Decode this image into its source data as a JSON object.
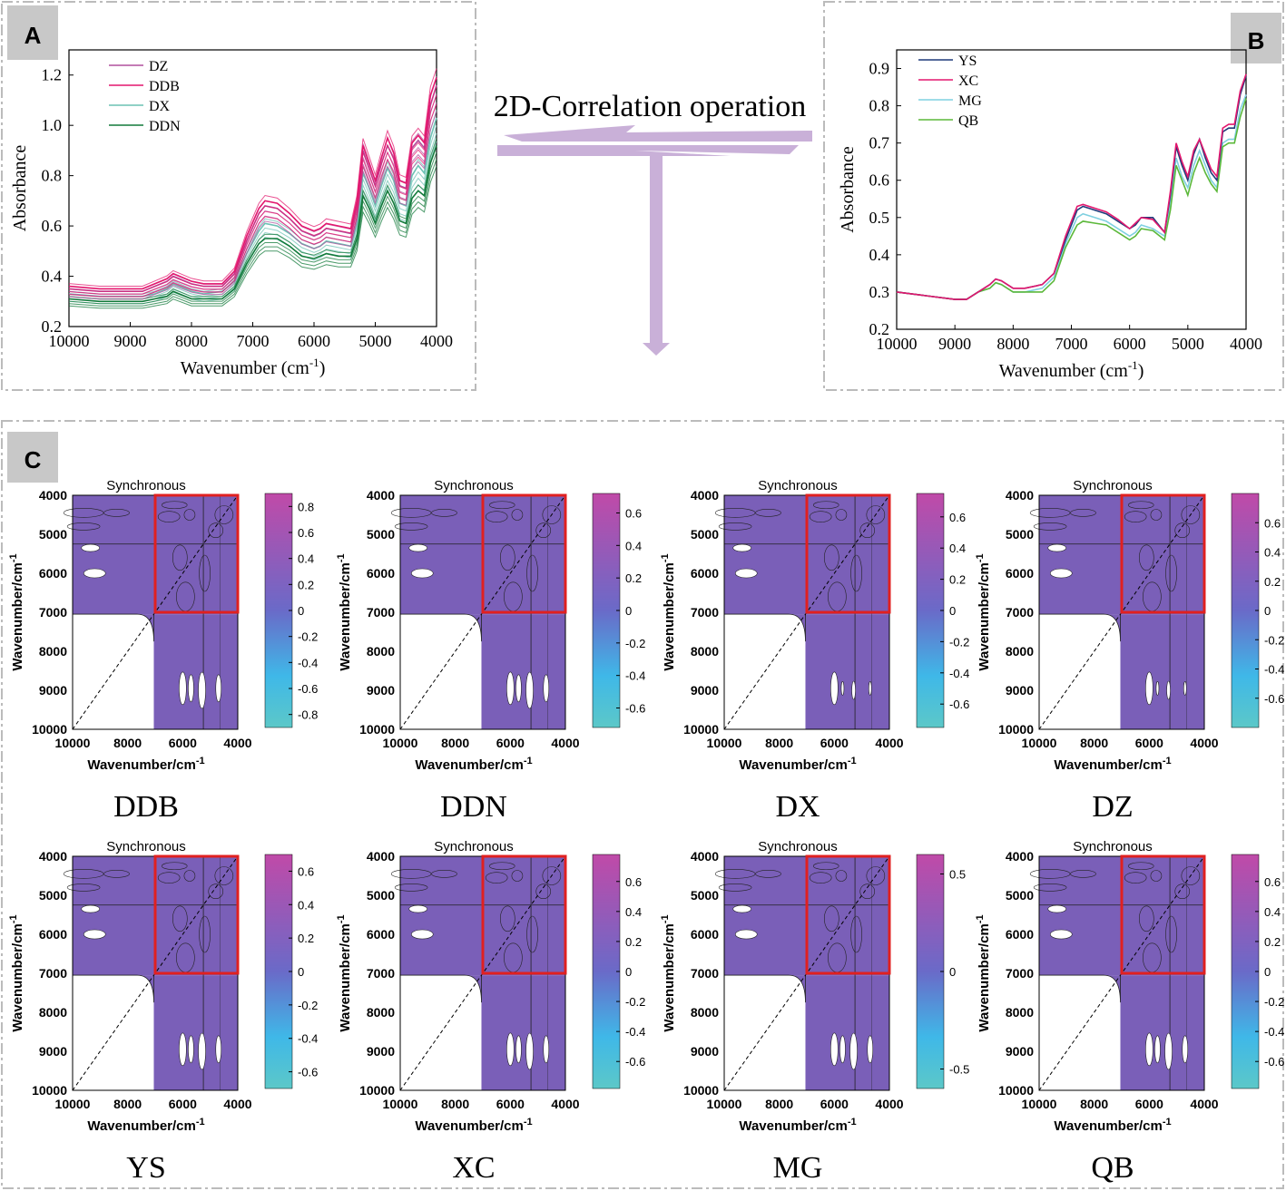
{
  "figure": {
    "panels": {
      "a": "A",
      "b": "B",
      "c": "C"
    },
    "operation_label": "2D-Correlation operation"
  },
  "colors": {
    "dz": "#b0509e",
    "ddb": "#e3176e",
    "dx": "#6cc2b4",
    "ddn": "#127a3a",
    "ys": "#1f3a7a",
    "xc": "#e3176e",
    "mg": "#7fd0e0",
    "qb": "#5cb83a",
    "map_fill": "#7a5fb8",
    "highlight": "#e02020",
    "arrow": "#c9b0d8"
  },
  "chart_data": [
    {
      "id": "A",
      "type": "line",
      "title": "",
      "xlabel": "Wavenumber (cm",
      "xlabel_sup": "-1",
      "xlabel_end": ")",
      "ylabel": "Absorbance",
      "xlim": [
        10000,
        4000
      ],
      "ylim": [
        0.2,
        1.3
      ],
      "xticks": [
        10000,
        9000,
        8000,
        7000,
        6000,
        5000,
        4000
      ],
      "xtick_labels": [
        "10000",
        "9000",
        "8000",
        "7000",
        "6000",
        "5000",
        "4000"
      ],
      "yticks": [
        0.2,
        0.4,
        0.6,
        0.8,
        1.0,
        1.2
      ],
      "ytick_labels": [
        "0.2",
        "0.4",
        "0.6",
        "0.8",
        "1.0",
        "1.2"
      ],
      "legend": [
        "DZ",
        "DDB",
        "DX",
        "DDN"
      ],
      "x": [
        10000,
        9500,
        9000,
        8800,
        8600,
        8400,
        8300,
        8200,
        8000,
        7800,
        7500,
        7300,
        7100,
        6900,
        6800,
        6600,
        6400,
        6200,
        6000,
        5900,
        5800,
        5600,
        5400,
        5300,
        5200,
        5100,
        5000,
        4900,
        4800,
        4700,
        4600,
        4500,
        4400,
        4300,
        4200,
        4100,
        4000
      ],
      "series": [
        {
          "name": "DDB",
          "values": [
            0.36,
            0.35,
            0.35,
            0.35,
            0.37,
            0.39,
            0.41,
            0.4,
            0.38,
            0.37,
            0.37,
            0.42,
            0.56,
            0.67,
            0.7,
            0.69,
            0.65,
            0.6,
            0.58,
            0.59,
            0.61,
            0.6,
            0.59,
            0.7,
            0.92,
            0.85,
            0.78,
            0.87,
            0.95,
            0.89,
            0.78,
            0.77,
            0.93,
            0.96,
            0.93,
            1.12,
            1.19
          ]
        },
        {
          "name": "DZ",
          "values": [
            0.35,
            0.34,
            0.34,
            0.34,
            0.36,
            0.38,
            0.4,
            0.39,
            0.37,
            0.36,
            0.36,
            0.41,
            0.54,
            0.65,
            0.68,
            0.67,
            0.63,
            0.58,
            0.56,
            0.57,
            0.59,
            0.58,
            0.57,
            0.68,
            0.9,
            0.83,
            0.76,
            0.85,
            0.92,
            0.87,
            0.76,
            0.75,
            0.91,
            0.94,
            0.91,
            1.08,
            1.16
          ]
        },
        {
          "name": "DX",
          "values": [
            0.33,
            0.32,
            0.32,
            0.32,
            0.33,
            0.35,
            0.37,
            0.36,
            0.34,
            0.33,
            0.34,
            0.38,
            0.49,
            0.58,
            0.61,
            0.6,
            0.57,
            0.53,
            0.51,
            0.52,
            0.54,
            0.53,
            0.52,
            0.61,
            0.81,
            0.75,
            0.68,
            0.76,
            0.83,
            0.78,
            0.69,
            0.68,
            0.8,
            0.84,
            0.81,
            0.95,
            1.03
          ]
        },
        {
          "name": "DDN",
          "values": [
            0.31,
            0.3,
            0.3,
            0.3,
            0.31,
            0.32,
            0.34,
            0.33,
            0.31,
            0.31,
            0.31,
            0.35,
            0.45,
            0.53,
            0.55,
            0.55,
            0.52,
            0.48,
            0.47,
            0.48,
            0.49,
            0.48,
            0.48,
            0.55,
            0.72,
            0.67,
            0.61,
            0.68,
            0.74,
            0.69,
            0.62,
            0.61,
            0.71,
            0.74,
            0.72,
            0.85,
            0.92
          ]
        }
      ]
    },
    {
      "id": "B",
      "type": "line",
      "title": "",
      "xlabel": "Wavenumber (cm",
      "xlabel_sup": "-1",
      "xlabel_end": ")",
      "ylabel": "Absorbance",
      "xlim": [
        10000,
        4000
      ],
      "ylim": [
        0.2,
        0.95
      ],
      "xticks": [
        10000,
        9000,
        8000,
        7000,
        6000,
        5000,
        4000
      ],
      "xtick_labels": [
        "10000",
        "9000",
        "8000",
        "7000",
        "6000",
        "5000",
        "4000"
      ],
      "yticks": [
        0.2,
        0.3,
        0.4,
        0.5,
        0.6,
        0.7,
        0.8,
        0.9
      ],
      "ytick_labels": [
        "0.2",
        "0.3",
        "0.4",
        "0.5",
        "0.6",
        "0.7",
        "0.8",
        "0.9"
      ],
      "legend": [
        "YS",
        "XC",
        "MG",
        "QB"
      ],
      "x": [
        10000,
        9500,
        9000,
        8800,
        8600,
        8400,
        8300,
        8200,
        8000,
        7800,
        7500,
        7300,
        7100,
        6900,
        6800,
        6600,
        6400,
        6200,
        6000,
        5900,
        5800,
        5600,
        5400,
        5300,
        5200,
        5100,
        5000,
        4900,
        4800,
        4700,
        4600,
        4500,
        4400,
        4300,
        4200,
        4100,
        4000
      ],
      "series": [
        {
          "name": "YS",
          "values": [
            0.3,
            0.29,
            0.28,
            0.28,
            0.3,
            0.32,
            0.335,
            0.33,
            0.31,
            0.31,
            0.32,
            0.35,
            0.44,
            0.52,
            0.53,
            0.52,
            0.51,
            0.49,
            0.47,
            0.48,
            0.5,
            0.5,
            0.46,
            0.56,
            0.69,
            0.64,
            0.6,
            0.67,
            0.71,
            0.66,
            0.62,
            0.6,
            0.73,
            0.74,
            0.74,
            0.83,
            0.88
          ]
        },
        {
          "name": "XC",
          "values": [
            0.3,
            0.29,
            0.28,
            0.28,
            0.3,
            0.32,
            0.335,
            0.33,
            0.31,
            0.31,
            0.32,
            0.35,
            0.45,
            0.53,
            0.535,
            0.525,
            0.515,
            0.495,
            0.47,
            0.485,
            0.5,
            0.495,
            0.46,
            0.57,
            0.7,
            0.65,
            0.61,
            0.68,
            0.71,
            0.67,
            0.63,
            0.61,
            0.74,
            0.75,
            0.75,
            0.84,
            0.885
          ]
        },
        {
          "name": "MG",
          "values": [
            0.3,
            0.29,
            0.28,
            0.28,
            0.3,
            0.31,
            0.325,
            0.32,
            0.3,
            0.3,
            0.31,
            0.34,
            0.43,
            0.5,
            0.51,
            0.5,
            0.49,
            0.47,
            0.45,
            0.46,
            0.48,
            0.47,
            0.45,
            0.54,
            0.66,
            0.61,
            0.58,
            0.64,
            0.68,
            0.64,
            0.6,
            0.58,
            0.7,
            0.71,
            0.71,
            0.79,
            0.83
          ]
        },
        {
          "name": "QB",
          "values": [
            0.3,
            0.29,
            0.28,
            0.28,
            0.3,
            0.31,
            0.325,
            0.32,
            0.3,
            0.3,
            0.3,
            0.33,
            0.42,
            0.48,
            0.49,
            0.485,
            0.48,
            0.46,
            0.44,
            0.45,
            0.47,
            0.465,
            0.44,
            0.52,
            0.64,
            0.6,
            0.56,
            0.62,
            0.66,
            0.62,
            0.59,
            0.57,
            0.69,
            0.7,
            0.7,
            0.77,
            0.82
          ]
        }
      ]
    },
    {
      "id": "C",
      "type": "heatmap",
      "subplot_title": "Synchronous",
      "xlabel": "Wavenumber/cm",
      "ylabel": "Wavenumber/cm",
      "label_sup": "-1",
      "xlim": [
        10000,
        4000
      ],
      "ylim": [
        4000,
        10000
      ],
      "xtick_labels": [
        "10000",
        "8000",
        "6000",
        "4000"
      ],
      "ytick_labels": [
        "4000",
        "5000",
        "6000",
        "7000",
        "8000",
        "9000",
        "10000"
      ],
      "highlight_region": {
        "x": [
          7000,
          4000
        ],
        "y": [
          4000,
          7000
        ]
      },
      "maps": [
        {
          "name": "DDB",
          "colorbar_ticks": [
            "0.8",
            "0.6",
            "0.4",
            "0.2",
            "0",
            "-0.2",
            "-0.4",
            "-0.6",
            "-0.8"
          ],
          "range": [
            -0.9,
            0.9
          ]
        },
        {
          "name": "DDN",
          "colorbar_ticks": [
            "0.6",
            "0.4",
            "0.2",
            "0",
            "-0.2",
            "-0.4",
            "-0.6"
          ],
          "range": [
            -0.72,
            0.72
          ]
        },
        {
          "name": "DX",
          "colorbar_ticks": [
            "0.6",
            "0.4",
            "0.2",
            "0",
            "-0.2",
            "-0.4",
            "-0.6"
          ],
          "range": [
            -0.75,
            0.75
          ]
        },
        {
          "name": "DZ",
          "colorbar_ticks": [
            "0.6",
            "0.4",
            "0.2",
            "0",
            "-0.2",
            "-0.4",
            "-0.6"
          ],
          "range": [
            -0.8,
            0.8
          ]
        },
        {
          "name": "YS",
          "colorbar_ticks": [
            "0.6",
            "0.4",
            "0.2",
            "0",
            "-0.2",
            "-0.4",
            "-0.6"
          ],
          "range": [
            -0.7,
            0.7
          ]
        },
        {
          "name": "XC",
          "colorbar_ticks": [
            "0.6",
            "0.4",
            "0.2",
            "0",
            "-0.2",
            "-0.4",
            "-0.6"
          ],
          "range": [
            -0.78,
            0.78
          ]
        },
        {
          "name": "MG",
          "colorbar_ticks": [
            "0.5",
            "0",
            "-0.5"
          ],
          "range": [
            -0.6,
            0.6
          ]
        },
        {
          "name": "QB",
          "colorbar_ticks": [
            "0.6",
            "0.4",
            "0.2",
            "0",
            "-0.2",
            "-0.4",
            "-0.6"
          ],
          "range": [
            -0.78,
            0.78
          ]
        }
      ]
    }
  ]
}
